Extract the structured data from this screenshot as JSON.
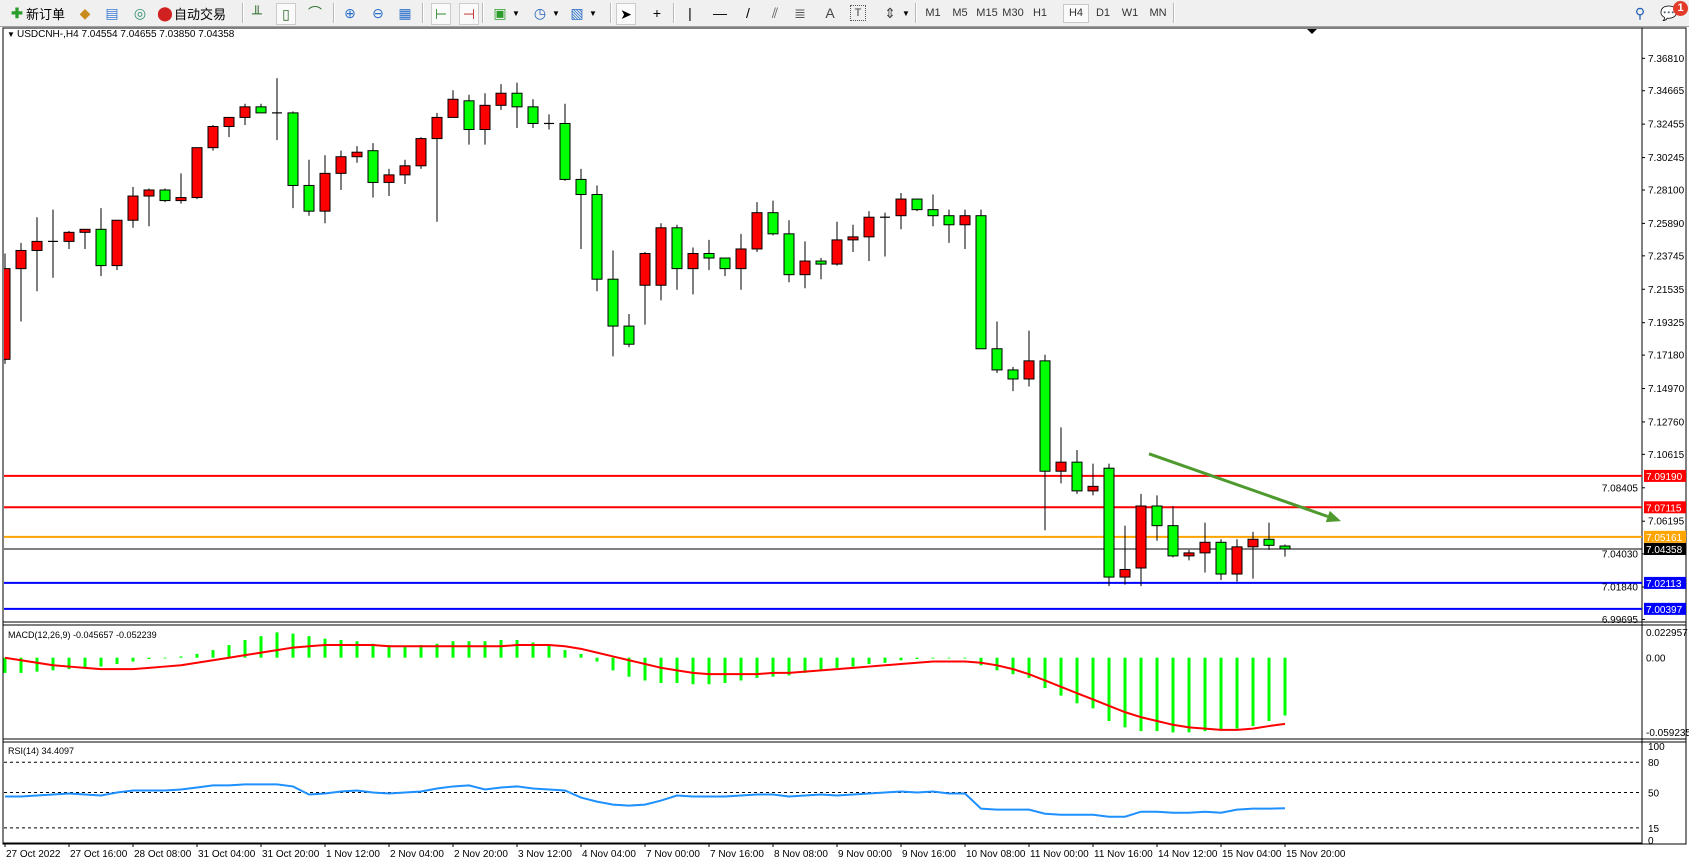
{
  "toolbar": {
    "new_order_label": "新订单",
    "auto_trading_label": "自动交易",
    "icons": [
      "new-order-icon",
      "market-watch-icon",
      "navigator-icon",
      "signals-icon",
      "auto-trading-icon",
      "bar-chart-icon",
      "candlestick-chart-icon",
      "line-chart-icon",
      "zoom-in-icon",
      "zoom-out-icon",
      "tile-windows-icon",
      "autoscroll-icon",
      "chart-shift-icon",
      "new-chart-icon",
      "periods-clock-icon",
      "templates-icon",
      "cursor-icon",
      "crosshair-icon",
      "vertical-line-icon",
      "horizontal-line-icon",
      "trendline-icon",
      "equidistant-channel-icon",
      "fibonacci-icon",
      "text-icon",
      "text-label-icon",
      "arrows-icon",
      "search-icon",
      "notifications-icon"
    ],
    "timeframes": [
      "M1",
      "M5",
      "M15",
      "M30",
      "H1",
      "H4",
      "D1",
      "W1",
      "MN"
    ],
    "active_timeframe": "H4",
    "notification_count": "1"
  },
  "chart_data": [
    {
      "type": "candlestick",
      "title": "USDCNH-,H4  7.04554 7.04655 7.03850 7.04358",
      "symbol": "USDCNH-",
      "timeframe": "H4",
      "last_ohlc": {
        "open": "7.04554",
        "high": "7.04655",
        "low": "7.03850",
        "close": "7.04358"
      },
      "ylim": [
        6.99695,
        7.376
      ],
      "grid": false,
      "bull_color": "#ff0000",
      "bear_color": "#00ff00",
      "y_ticks": [
        "7.36810",
        "7.34665",
        "7.32455",
        "7.30245",
        "7.28100",
        "7.25890",
        "7.23745",
        "7.21535",
        "7.19325",
        "7.17180",
        "7.14970",
        "7.12760",
        "7.10615",
        "7.08405",
        "7.06195",
        "7.04030",
        "7.01840",
        "6.99695"
      ],
      "x_ticks": [
        "27 Oct 2022",
        "27 Oct 16:00",
        "28 Oct 08:00",
        "31 Oct 04:00",
        "31 Oct 20:00",
        "1 Nov 12:00",
        "2 Nov 04:00",
        "2 Nov 20:00",
        "3 Nov 12:00",
        "4 Nov 04:00",
        "7 Nov 00:00",
        "7 Nov 16:00",
        "8 Nov 08:00",
        "9 Nov 00:00",
        "9 Nov 16:00",
        "10 Nov 08:00",
        "11 Nov 00:00",
        "11 Nov 16:00",
        "14 Nov 12:00",
        "15 Nov 04:00",
        "15 Nov 20:00"
      ],
      "x_tick_every_bars": 4,
      "ohlc": [
        [
          7.169,
          7.239,
          7.166,
          7.229
        ],
        [
          7.229,
          7.246,
          7.194,
          7.241
        ],
        [
          7.241,
          7.263,
          7.214,
          7.247
        ],
        [
          7.247,
          7.268,
          7.223,
          7.247
        ],
        [
          7.247,
          7.254,
          7.242,
          7.253
        ],
        [
          7.253,
          7.255,
          7.242,
          7.255
        ],
        [
          7.255,
          7.269,
          7.224,
          7.231
        ],
        [
          7.231,
          7.261,
          7.228,
          7.261
        ],
        [
          7.261,
          7.283,
          7.256,
          7.277
        ],
        [
          7.277,
          7.282,
          7.257,
          7.281
        ],
        [
          7.281,
          7.282,
          7.273,
          7.274
        ],
        [
          7.274,
          7.292,
          7.272,
          7.276
        ],
        [
          7.276,
          7.309,
          7.275,
          7.309
        ],
        [
          7.309,
          7.324,
          7.307,
          7.323
        ],
        [
          7.323,
          7.329,
          7.316,
          7.329
        ],
        [
          7.329,
          7.338,
          7.324,
          7.336
        ],
        [
          7.336,
          7.338,
          7.332,
          7.332
        ],
        [
          7.332,
          7.355,
          7.314,
          7.332
        ],
        [
          7.332,
          7.333,
          7.269,
          7.284
        ],
        [
          7.284,
          7.301,
          7.264,
          7.267
        ],
        [
          7.267,
          7.304,
          7.259,
          7.292
        ],
        [
          7.292,
          7.307,
          7.281,
          7.303
        ],
        [
          7.303,
          7.31,
          7.299,
          7.306
        ],
        [
          7.307,
          7.312,
          7.276,
          7.286
        ],
        [
          7.286,
          7.295,
          7.277,
          7.291
        ],
        [
          7.291,
          7.301,
          7.285,
          7.297
        ],
        [
          7.297,
          7.316,
          7.295,
          7.315
        ],
        [
          7.315,
          7.332,
          7.26,
          7.329
        ],
        [
          7.329,
          7.347,
          7.329,
          7.341
        ],
        [
          7.34,
          7.344,
          7.311,
          7.321
        ],
        [
          7.321,
          7.345,
          7.311,
          7.337
        ],
        [
          7.337,
          7.351,
          7.334,
          7.345
        ],
        [
          7.345,
          7.352,
          7.322,
          7.336
        ],
        [
          7.336,
          7.341,
          7.322,
          7.325
        ],
        [
          7.325,
          7.331,
          7.321,
          7.325
        ],
        [
          7.325,
          7.338,
          7.287,
          7.288
        ],
        [
          7.288,
          7.295,
          7.242,
          7.278
        ],
        [
          7.278,
          7.284,
          7.214,
          7.222
        ],
        [
          7.222,
          7.241,
          7.171,
          7.191
        ],
        [
          7.191,
          7.199,
          7.177,
          7.179
        ],
        [
          7.218,
          7.24,
          7.192,
          7.239
        ],
        [
          7.218,
          7.259,
          7.208,
          7.256
        ],
        [
          7.256,
          7.258,
          7.215,
          7.229
        ],
        [
          7.229,
          7.243,
          7.212,
          7.239
        ],
        [
          7.239,
          7.248,
          7.228,
          7.236
        ],
        [
          7.236,
          7.236,
          7.224,
          7.229
        ],
        [
          7.229,
          7.252,
          7.215,
          7.242
        ],
        [
          7.242,
          7.273,
          7.24,
          7.266
        ],
        [
          7.266,
          7.274,
          7.251,
          7.252
        ],
        [
          7.252,
          7.261,
          7.22,
          7.225
        ],
        [
          7.225,
          7.247,
          7.216,
          7.234
        ],
        [
          7.234,
          7.236,
          7.222,
          7.232
        ],
        [
          7.232,
          7.26,
          7.231,
          7.248
        ],
        [
          7.248,
          7.258,
          7.24,
          7.25
        ],
        [
          7.25,
          7.267,
          7.234,
          7.263
        ],
        [
          7.263,
          7.266,
          7.237,
          7.263
        ],
        [
          7.264,
          7.279,
          7.255,
          7.275
        ],
        [
          7.275,
          7.275,
          7.267,
          7.268
        ],
        [
          7.268,
          7.278,
          7.257,
          7.264
        ],
        [
          7.264,
          7.268,
          7.246,
          7.258
        ],
        [
          7.258,
          7.268,
          7.242,
          7.264
        ],
        [
          7.264,
          7.268,
          7.176,
          7.176
        ],
        [
          7.176,
          7.194,
          7.16,
          7.162
        ],
        [
          7.162,
          7.164,
          7.148,
          7.156
        ],
        [
          7.156,
          7.188,
          7.151,
          7.168
        ],
        [
          7.168,
          7.172,
          7.056,
          7.095
        ],
        [
          7.095,
          7.124,
          7.087,
          7.101
        ],
        [
          7.101,
          7.109,
          7.08,
          7.082
        ],
        [
          7.082,
          7.1,
          7.079,
          7.085
        ],
        [
          7.097,
          7.1,
          7.019,
          7.025
        ],
        [
          7.025,
          7.059,
          7.02,
          7.03
        ],
        [
          7.031,
          7.08,
          7.019,
          7.072
        ],
        [
          7.072,
          7.079,
          7.049,
          7.059
        ],
        [
          7.059,
          7.072,
          7.038,
          7.039
        ],
        [
          7.039,
          7.043,
          7.036,
          7.041
        ],
        [
          7.041,
          7.061,
          7.028,
          7.048
        ],
        [
          7.048,
          7.05,
          7.023,
          7.027
        ],
        [
          7.027,
          7.05,
          7.022,
          7.045
        ],
        [
          7.045,
          7.055,
          7.024,
          7.05
        ],
        [
          7.05,
          7.061,
          7.043,
          7.046
        ],
        [
          7.04554,
          7.04655,
          7.0385,
          7.04358
        ]
      ],
      "horizontal_lines": [
        {
          "price": 7.0919,
          "label": "7.09190",
          "color": "#ff0000"
        },
        {
          "price": 7.07115,
          "label": "7.07115",
          "color": "#ff0000"
        },
        {
          "price": 7.05161,
          "label": "7.05161",
          "color": "#ffa500"
        },
        {
          "price": 7.04358,
          "label": "7.04358",
          "color": "#000000"
        },
        {
          "price": 7.02113,
          "label": "7.02113",
          "color": "#0000ff"
        },
        {
          "price": 7.00397,
          "label": "7.00397",
          "color": "#0000ff"
        }
      ],
      "annotations": [
        {
          "type": "arrow",
          "color": "#4e9a2e",
          "from": {
            "bar": 71.5,
            "price": 7.1065
          },
          "to": {
            "bar": 83.5,
            "price": 7.062
          }
        }
      ]
    },
    {
      "type": "bar+line",
      "title": "MACD(12,26,9) -0.045657 -0.052239",
      "ylim": [
        -0.059235,
        0.022957
      ],
      "y_ticks": [
        "0.022957",
        "0.00",
        "-0.059235"
      ],
      "histogram_color": "#00ff00",
      "signal_color": "#ff0000",
      "histogram": [
        -0.012,
        -0.012,
        -0.011,
        -0.01,
        -0.009,
        -0.008,
        -0.007,
        -0.005,
        -0.003,
        -0.001,
        0.0,
        0.001,
        0.003,
        0.006,
        0.01,
        0.014,
        0.017,
        0.02,
        0.019,
        0.017,
        0.015,
        0.014,
        0.013,
        0.011,
        0.01,
        0.009,
        0.01,
        0.011,
        0.013,
        0.013,
        0.013,
        0.014,
        0.014,
        0.012,
        0.01,
        0.006,
        0.003,
        -0.003,
        -0.01,
        -0.015,
        -0.018,
        -0.02,
        -0.02,
        -0.021,
        -0.021,
        -0.02,
        -0.018,
        -0.016,
        -0.015,
        -0.014,
        -0.012,
        -0.01,
        -0.008,
        -0.007,
        -0.005,
        -0.004,
        -0.002,
        -0.001,
        0.0,
        0.0,
        0.0,
        -0.006,
        -0.01,
        -0.013,
        -0.016,
        -0.024,
        -0.03,
        -0.036,
        -0.04,
        -0.05,
        -0.055,
        -0.058,
        -0.058,
        -0.059,
        -0.059,
        -0.058,
        -0.057,
        -0.056,
        -0.054,
        -0.05,
        -0.045657
      ],
      "signal": [
        0.0,
        -0.002,
        -0.004,
        -0.006,
        -0.007,
        -0.008,
        -0.009,
        -0.009,
        -0.009,
        -0.008,
        -0.007,
        -0.006,
        -0.004,
        -0.002,
        0.0,
        0.002,
        0.004,
        0.006,
        0.008,
        0.009,
        0.01,
        0.01,
        0.01,
        0.01,
        0.009,
        0.009,
        0.009,
        0.009,
        0.009,
        0.009,
        0.009,
        0.009,
        0.01,
        0.01,
        0.01,
        0.009,
        0.007,
        0.004,
        0.001,
        -0.002,
        -0.005,
        -0.008,
        -0.01,
        -0.012,
        -0.013,
        -0.013,
        -0.013,
        -0.013,
        -0.012,
        -0.012,
        -0.011,
        -0.01,
        -0.009,
        -0.008,
        -0.007,
        -0.006,
        -0.005,
        -0.004,
        -0.003,
        -0.003,
        -0.003,
        -0.004,
        -0.006,
        -0.009,
        -0.013,
        -0.018,
        -0.023,
        -0.028,
        -0.033,
        -0.038,
        -0.043,
        -0.047,
        -0.05,
        -0.053,
        -0.055,
        -0.056,
        -0.057,
        -0.057,
        -0.056,
        -0.054,
        -0.052239
      ]
    },
    {
      "type": "line",
      "title": "RSI(14) 34.4097",
      "ylim": [
        0,
        100
      ],
      "y_ticks": [
        "100",
        "80",
        "50",
        "15",
        "0"
      ],
      "levels": [
        80,
        50,
        15
      ],
      "color": "#1e90ff",
      "values": [
        46,
        46,
        47,
        48,
        49,
        48,
        47,
        50,
        52,
        52,
        52,
        53,
        55,
        57,
        57,
        58,
        58,
        58,
        56,
        48,
        49,
        51,
        52,
        50,
        49,
        50,
        51,
        54,
        56,
        57,
        53,
        55,
        56,
        54,
        53,
        52,
        45,
        41,
        38,
        37,
        38,
        42,
        47,
        46,
        46,
        46,
        47,
        48,
        48,
        46,
        47,
        48,
        47,
        48,
        49,
        50,
        51,
        50,
        51,
        49,
        49,
        34,
        33,
        33,
        33,
        29,
        28,
        28,
        28,
        26,
        26,
        31,
        31,
        30,
        30,
        31,
        30,
        33,
        34,
        34,
        34.4097
      ]
    }
  ]
}
